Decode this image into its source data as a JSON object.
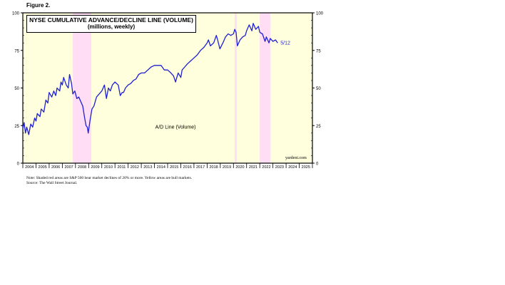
{
  "figure_label": "Figure 2.",
  "title": "NYSE CUMULATIVE ADVANCE/DECLINE LINE (VOLUME)",
  "subtitle": "(millions, weekly)",
  "source_tag": "yardeni.com",
  "notes": [
    "Note: Shaded red areas are S&P 500 bear market declines of 20% or more. Yellow areas are bull markets.",
    "Source: The Wall Street Journal."
  ],
  "colors": {
    "line": "#1f1fd4",
    "bull": "#ffffdd",
    "bear": "#ffddf5",
    "axis": "#000000"
  },
  "chart_data": {
    "type": "line",
    "series": [
      {
        "name": "A/D Line (Volume)",
        "last_label": "5/12",
        "x": [
          2004.0,
          2004.1,
          2004.2,
          2004.3,
          2004.45,
          2004.6,
          2004.75,
          2004.9,
          2005.0,
          2005.1,
          2005.3,
          2005.4,
          2005.6,
          2005.75,
          2005.9,
          2006.0,
          2006.2,
          2006.35,
          2006.5,
          2006.6,
          2006.8,
          2006.9,
          2007.0,
          2007.1,
          2007.3,
          2007.45,
          2007.55,
          2007.7,
          2007.8,
          2007.95,
          2008.1,
          2008.25,
          2008.4,
          2008.55,
          2008.7,
          2008.8,
          2008.9,
          2008.97,
          2009.1,
          2009.25,
          2009.4,
          2009.6,
          2009.8,
          2010.0,
          2010.2,
          2010.35,
          2010.5,
          2010.65,
          2010.8,
          2011.0,
          2011.25,
          2011.4,
          2011.55,
          2011.65,
          2011.8,
          2012.0,
          2012.2,
          2012.4,
          2012.6,
          2012.8,
          2013.0,
          2013.25,
          2013.5,
          2013.75,
          2014.0,
          2014.25,
          2014.5,
          2014.75,
          2015.0,
          2015.25,
          2015.45,
          2015.6,
          2015.7,
          2015.8,
          2016.0,
          2016.1,
          2016.3,
          2016.5,
          2016.75,
          2017.0,
          2017.25,
          2017.5,
          2017.75,
          2018.0,
          2018.1,
          2018.25,
          2018.5,
          2018.7,
          2018.8,
          2018.97,
          2019.2,
          2019.4,
          2019.6,
          2019.8,
          2020.0,
          2020.1,
          2020.2,
          2020.3,
          2020.5,
          2020.7,
          2020.9,
          2021.0,
          2021.2,
          2021.4,
          2021.5,
          2021.7,
          2021.9,
          2022.0,
          2022.2,
          2022.4,
          2022.5,
          2022.7,
          2022.8,
          2023.0,
          2023.2,
          2023.36
        ],
        "y": [
          23,
          27,
          20,
          24,
          19,
          26,
          24,
          30,
          28,
          33,
          31,
          36,
          34,
          42,
          40,
          47,
          44,
          48,
          45,
          50,
          48,
          54,
          52,
          57,
          52,
          50,
          59,
          53,
          46,
          48,
          43,
          44,
          41,
          38,
          30,
          25,
          24,
          20,
          28,
          36,
          38,
          44,
          46,
          48,
          52,
          43,
          50,
          48,
          52,
          54,
          52,
          45,
          47,
          47,
          50,
          52,
          53,
          55,
          56,
          59,
          60,
          60,
          62,
          64,
          65,
          65,
          65,
          62,
          62,
          60,
          58,
          54,
          57,
          60,
          57,
          62,
          64,
          66,
          68,
          70,
          72,
          75,
          77,
          80,
          82,
          78,
          80,
          85,
          82,
          76,
          80,
          84,
          86,
          85,
          86,
          89,
          87,
          78,
          82,
          84,
          85,
          88,
          92,
          88,
          93,
          89,
          91,
          87,
          86,
          81,
          84,
          80,
          83,
          81,
          82,
          80
        ],
        "xlim": [
          2004,
          2026
        ],
        "ylim": [
          0,
          100
        ]
      }
    ],
    "yticks": [
      0,
      25,
      50,
      75,
      100
    ],
    "xtick_labels": [
      "2004",
      "2005",
      "2006",
      "2007",
      "2008",
      "2009",
      "2010",
      "2011",
      "2012",
      "2013",
      "2014",
      "2015",
      "2016",
      "2017",
      "2018",
      "2019",
      "2020",
      "2021",
      "2022",
      "2023",
      "2024",
      "2025"
    ],
    "bear_markets": [
      [
        2007.8,
        2009.2
      ],
      [
        2020.1,
        2020.25
      ],
      [
        2022.0,
        2022.8
      ]
    ],
    "grid": false,
    "legend": "in-plot label"
  }
}
